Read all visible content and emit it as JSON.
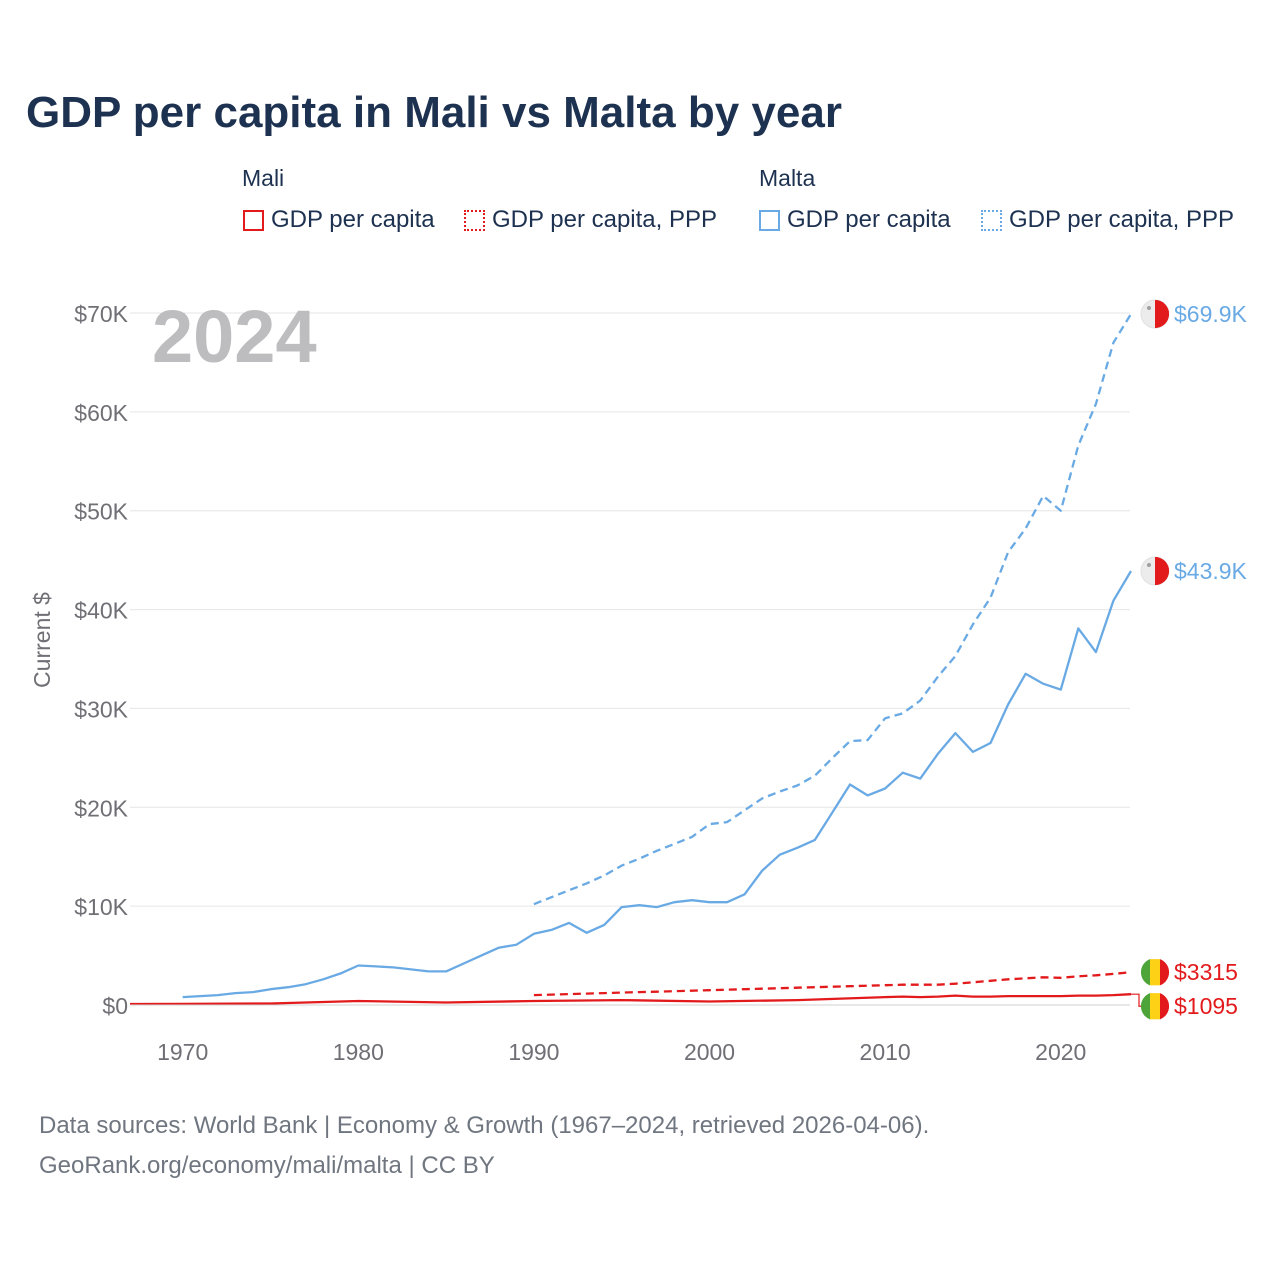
{
  "title": "GDP per capita in Mali vs Malta by year",
  "year_label": "2024",
  "legend": {
    "groups": [
      {
        "name": "Mali",
        "color": "#e31a1c",
        "items": [
          {
            "label": "GDP per capita",
            "style": "solid"
          },
          {
            "label": "GDP per capita, PPP",
            "style": "dotted"
          }
        ]
      },
      {
        "name": "Malta",
        "color": "#6aaae4",
        "items": [
          {
            "label": "GDP per capita",
            "style": "solid"
          },
          {
            "label": "GDP per capita, PPP",
            "style": "dotted"
          }
        ]
      }
    ]
  },
  "sources": {
    "line1": "Data sources: World Bank | Economy & Growth (1967–2024, retrieved 2026-04-06).",
    "line2": "GeoRank.org/economy/mali/malta | CC BY"
  },
  "chart_data": {
    "type": "line",
    "title": "GDP per capita in Mali vs Malta by year",
    "xlabel": "",
    "ylabel": "Current $",
    "xlim": [
      1967,
      2024
    ],
    "ylim": [
      0,
      70000
    ],
    "grid": true,
    "x_ticks": [
      1970,
      1980,
      1990,
      2000,
      2010,
      2020
    ],
    "x_tick_labels": [
      "1970",
      "1980",
      "1990",
      "2000",
      "2010",
      "2020"
    ],
    "y_ticks": [
      0,
      10000,
      20000,
      30000,
      40000,
      50000,
      60000,
      70000
    ],
    "y_tick_labels": [
      "$0",
      "$10K",
      "$20K",
      "$30K",
      "$40K",
      "$50K",
      "$60K",
      "$70K"
    ],
    "series": [
      {
        "name": "Malta GDP per capita, PPP",
        "country": "Malta",
        "color": "#6aaae4",
        "style": "dashed",
        "end_label": "$69.9K",
        "x": [
          1990,
          1991,
          1992,
          1993,
          1994,
          1995,
          1996,
          1997,
          1998,
          1999,
          2000,
          2001,
          2002,
          2003,
          2004,
          2005,
          2006,
          2007,
          2008,
          2009,
          2010,
          2011,
          2012,
          2013,
          2014,
          2015,
          2016,
          2017,
          2018,
          2019,
          2020,
          2021,
          2022,
          2023,
          2024
        ],
        "values": [
          10200,
          10900,
          11600,
          12300,
          13100,
          14100,
          14800,
          15600,
          16300,
          17000,
          18300,
          18500,
          19700,
          20900,
          21600,
          22200,
          23200,
          25000,
          26700,
          26800,
          29000,
          29500,
          30800,
          33200,
          35300,
          38500,
          41200,
          45800,
          48200,
          51500,
          50000,
          56600,
          60800,
          67000,
          69900
        ]
      },
      {
        "name": "Malta GDP per capita",
        "country": "Malta",
        "color": "#6aaae4",
        "style": "solid",
        "end_label": "$43.9K",
        "x": [
          1970,
          1971,
          1972,
          1973,
          1974,
          1975,
          1976,
          1977,
          1978,
          1979,
          1980,
          1981,
          1982,
          1983,
          1984,
          1985,
          1986,
          1987,
          1988,
          1989,
          1990,
          1991,
          1992,
          1993,
          1994,
          1995,
          1996,
          1997,
          1998,
          1999,
          2000,
          2001,
          2002,
          2003,
          2004,
          2005,
          2006,
          2007,
          2008,
          2009,
          2010,
          2011,
          2012,
          2013,
          2014,
          2015,
          2016,
          2017,
          2018,
          2019,
          2020,
          2021,
          2022,
          2023,
          2024
        ],
        "values": [
          800,
          900,
          1000,
          1200,
          1300,
          1600,
          1800,
          2100,
          2600,
          3200,
          4000,
          3900,
          3800,
          3600,
          3400,
          3400,
          4200,
          5000,
          5800,
          6100,
          7200,
          7600,
          8300,
          7300,
          8100,
          9900,
          10100,
          9900,
          10400,
          10600,
          10400,
          10400,
          11200,
          13600,
          15200,
          15900,
          16700,
          19500,
          22300,
          21200,
          21900,
          23500,
          22900,
          25400,
          27500,
          25600,
          26500,
          30400,
          33500,
          32500,
          31900,
          38100,
          35700,
          40900,
          43900
        ]
      },
      {
        "name": "Mali GDP per capita, PPP",
        "country": "Mali",
        "color": "#e31a1c",
        "style": "dashed",
        "end_label": "$3315",
        "x": [
          1990,
          1991,
          1992,
          1993,
          1994,
          1995,
          1996,
          1997,
          1998,
          1999,
          2000,
          2001,
          2002,
          2003,
          2004,
          2005,
          2006,
          2007,
          2008,
          2009,
          2010,
          2011,
          2012,
          2013,
          2014,
          2015,
          2016,
          2017,
          2018,
          2019,
          2020,
          2021,
          2022,
          2023,
          2024
        ],
        "values": [
          1000,
          1050,
          1100,
          1150,
          1200,
          1250,
          1300,
          1350,
          1400,
          1450,
          1500,
          1550,
          1600,
          1650,
          1700,
          1750,
          1800,
          1850,
          1900,
          1950,
          2000,
          2050,
          2050,
          2050,
          2150,
          2300,
          2450,
          2600,
          2700,
          2800,
          2750,
          2900,
          3000,
          3150,
          3315
        ]
      },
      {
        "name": "Mali GDP per capita",
        "country": "Mali",
        "color": "#e31a1c",
        "style": "solid",
        "end_label": "$1095",
        "x": [
          1967,
          1970,
          1975,
          1980,
          1985,
          1990,
          1995,
          2000,
          2005,
          2010,
          2011,
          2012,
          2013,
          2014,
          2015,
          2016,
          2017,
          2018,
          2019,
          2020,
          2021,
          2022,
          2023,
          2024
        ],
        "values": [
          100,
          110,
          150,
          400,
          250,
          400,
          500,
          350,
          500,
          800,
          850,
          800,
          850,
          950,
          850,
          850,
          900,
          900,
          900,
          900,
          950,
          950,
          1000,
          1095
        ]
      }
    ]
  }
}
